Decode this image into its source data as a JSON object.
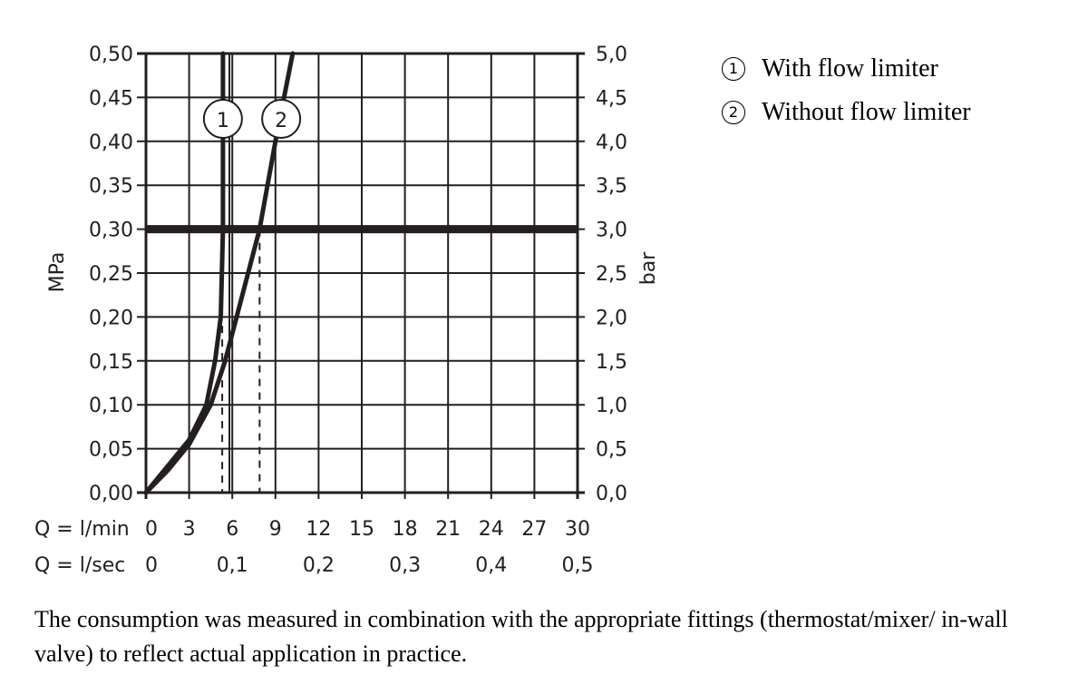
{
  "chart_data": {
    "type": "line",
    "title": "",
    "xlabel": "Q = l/min",
    "xlabel_secondary": "Q = l/sec",
    "ylabel": "MPa",
    "ylabel_right": "bar",
    "xlim": [
      0,
      30
    ],
    "ylim": [
      0,
      0.5
    ],
    "ylim_right": [
      0,
      5.0
    ],
    "grid": true,
    "legend_position": "top-right",
    "x_ticks": [
      "0",
      "3",
      "6",
      "9",
      "12",
      "15",
      "18",
      "21",
      "24",
      "27",
      "30"
    ],
    "x_ticks_secondary": [
      "0",
      "0,1",
      "0,2",
      "0,3",
      "0,4",
      "0,5"
    ],
    "y_ticks": [
      "0,00",
      "0,05",
      "0,10",
      "0,15",
      "0,20",
      "0,25",
      "0,30",
      "0,35",
      "0,40",
      "0,45",
      "0,50"
    ],
    "y_ticks_right": [
      "0,0",
      "0,5",
      "1,0",
      "1,5",
      "2,0",
      "2,5",
      "3,0",
      "3,5",
      "4,0",
      "4,5",
      "5,0"
    ],
    "reference_line": {
      "y": 0.3,
      "label": "3,0 bar",
      "style": "thick"
    },
    "series": [
      {
        "name": "With flow limiter",
        "marker": "1",
        "x": [
          0,
          1.5,
          3,
          4.2,
          4.8,
          5.2,
          5.35,
          5.35
        ],
        "y": [
          0,
          0.03,
          0.06,
          0.1,
          0.15,
          0.2,
          0.3,
          0.5
        ],
        "dashed_drop_x": 5.3
      },
      {
        "name": "Without flow limiter",
        "marker": "2",
        "x": [
          0,
          1.5,
          3,
          4.5,
          5.5,
          6.3,
          7.9,
          9.0,
          10.2
        ],
        "y": [
          0,
          0.025,
          0.055,
          0.1,
          0.15,
          0.2,
          0.3,
          0.4,
          0.5
        ],
        "dashed_drop_x": 7.9
      }
    ]
  },
  "legend": {
    "items": [
      {
        "marker": "1",
        "label": "With flow limiter"
      },
      {
        "marker": "2",
        "label": "Without flow limiter"
      }
    ]
  },
  "footnote": "The consumption was measured in combination with the appropriate fittings (thermostat/mixer/ in-wall valve) to reflect actual application in practice.",
  "colors": {
    "ink": "#231f20",
    "background": "#ffffff"
  }
}
